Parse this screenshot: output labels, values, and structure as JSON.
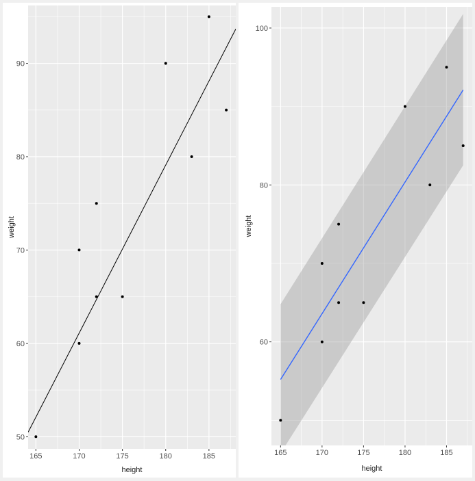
{
  "chart_data": [
    {
      "type": "scatter",
      "xlabel": "height",
      "ylabel": "weight",
      "xlim": [
        164.1,
        188.1
      ],
      "ylim": [
        48.7,
        96.2
      ],
      "xticks": [
        165,
        170,
        175,
        180,
        185
      ],
      "yticks": [
        50,
        60,
        70,
        80,
        90
      ],
      "x": [
        165,
        170,
        170,
        172,
        172,
        175,
        180,
        183,
        185,
        187
      ],
      "y": [
        50,
        60,
        70,
        65,
        75,
        65,
        90,
        80,
        95,
        85
      ],
      "abline": {
        "intercept": -244.9,
        "slope": 1.8
      },
      "colors": {
        "panel": "#ebebeb",
        "grid": "#ffffff",
        "point": "#000000",
        "line": "#000000"
      }
    },
    {
      "type": "scatter",
      "xlabel": "height",
      "ylabel": "weight",
      "xlim": [
        163.9,
        188.1
      ],
      "ylim": [
        46.8,
        102.7
      ],
      "xticks": [
        165,
        170,
        175,
        180,
        185
      ],
      "yticks": [
        60,
        80,
        100
      ],
      "x": [
        165,
        170,
        170,
        172,
        172,
        175,
        180,
        183,
        185,
        187
      ],
      "y": [
        50,
        60,
        70,
        65,
        75,
        65,
        90,
        80,
        95,
        85
      ],
      "smooth": {
        "method": "lm",
        "x": [
          165,
          187
        ],
        "fit": [
          55.2,
          92.1
        ],
        "lower": [
          45.8,
          82.5
        ],
        "upper": [
          64.8,
          101.8
        ]
      },
      "colors": {
        "panel": "#ebebeb",
        "grid": "#ffffff",
        "point": "#000000",
        "line": "#3366ff",
        "band": "#999999"
      }
    }
  ]
}
